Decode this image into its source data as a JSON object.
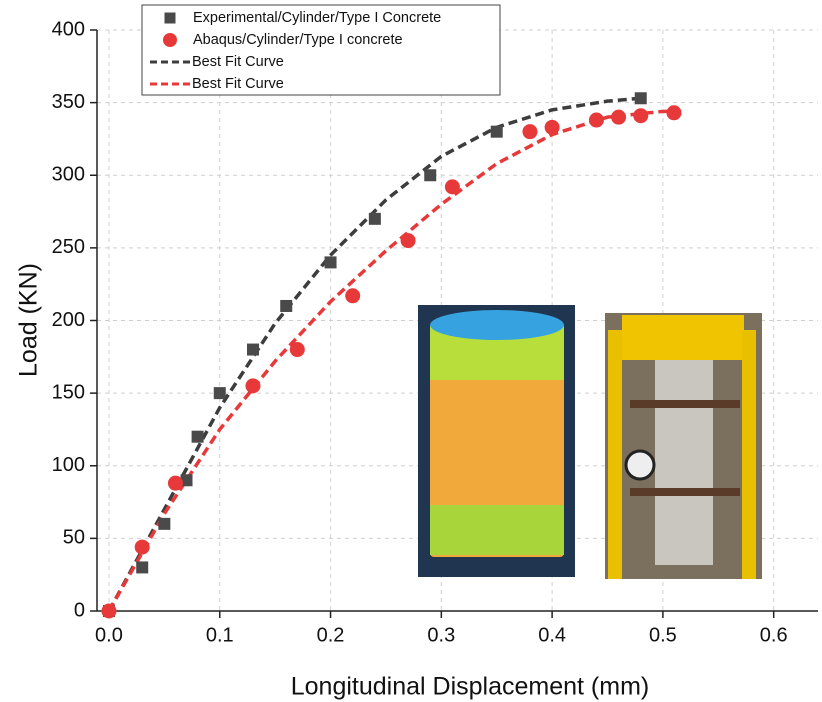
{
  "chart_data": {
    "type": "scatter",
    "xlabel": "Longitudinal Displacement (mm)",
    "ylabel": "Load (KN)",
    "xlim": [
      -0.0108,
      0.64
    ],
    "ylim": [
      0,
      400
    ],
    "xticks": [
      {
        "value": 0,
        "label": "0.0"
      },
      0.1,
      0.2,
      0.3,
      0.4,
      0.5,
      0.6
    ],
    "yticks": [
      0,
      50,
      100,
      150,
      200,
      250,
      300,
      350,
      400
    ],
    "grid": true,
    "legend": "upper left",
    "series": [
      {
        "name": "Experimental/Cylinder/Type I Concrete",
        "color": "#4a4a4a",
        "marker": "square",
        "x": [
          0,
          0.03,
          0.05,
          0.07,
          0.08,
          0.1,
          0.13,
          0.16,
          0.2,
          0.24,
          0.29,
          0.35,
          0.48
        ],
        "values": [
          0,
          30,
          60,
          90,
          120,
          150,
          180,
          210,
          240,
          270,
          300,
          330,
          353
        ]
      },
      {
        "name": "Abaqus/Cylinder/Type I concrete",
        "color": "#e8393a",
        "marker": "circle",
        "x": [
          0,
          0.03,
          0.06,
          0.13,
          0.17,
          0.22,
          0.27,
          0.31,
          0.38,
          0.4,
          0.44,
          0.46,
          0.48,
          0.51
        ],
        "values": [
          0,
          44,
          88,
          155,
          180,
          217,
          255,
          292,
          330,
          333,
          338,
          340,
          341,
          343
        ]
      },
      {
        "name": "Best Fit Curve",
        "color": "#3d3d3d",
        "marker": "dashed-line",
        "x": [
          0,
          0.05,
          0.1,
          0.15,
          0.2,
          0.25,
          0.3,
          0.35,
          0.4,
          0.45,
          0.48
        ],
        "values": [
          0,
          70,
          140,
          198,
          245,
          283,
          313,
          333,
          345,
          351,
          353
        ]
      },
      {
        "name": "Best Fit Curve",
        "color": "#e8393a",
        "marker": "dashed-line",
        "x": [
          0,
          0.05,
          0.1,
          0.15,
          0.2,
          0.25,
          0.3,
          0.35,
          0.4,
          0.45,
          0.5,
          0.51
        ],
        "values": [
          0,
          67,
          125,
          172,
          213,
          248,
          280,
          308,
          328,
          340,
          344,
          344
        ]
      }
    ]
  }
}
